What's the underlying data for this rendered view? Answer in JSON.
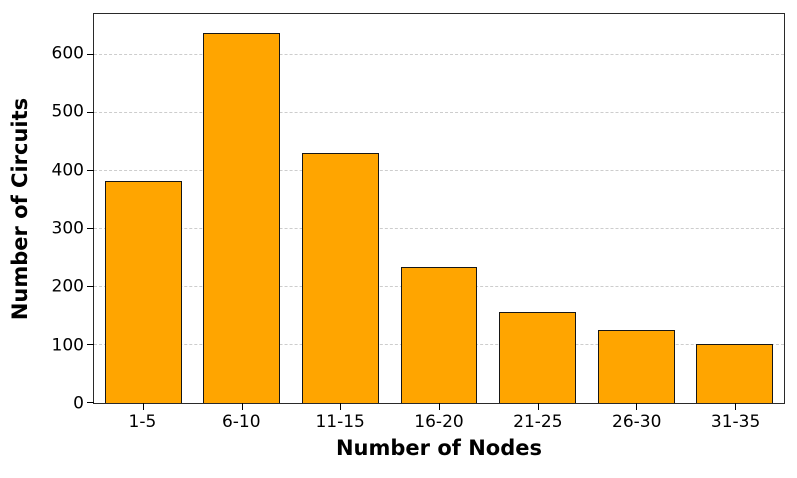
{
  "chart_data": {
    "type": "bar",
    "categories": [
      "1-5",
      "6-10",
      "11-15",
      "16-20",
      "21-25",
      "26-30",
      "31-35"
    ],
    "values": [
      383,
      638,
      431,
      234,
      156,
      126,
      101
    ],
    "title": "",
    "xlabel": "Number of Nodes",
    "ylabel": "Number of Circuits",
    "ylim": [
      0,
      670
    ],
    "yticks": [
      0,
      100,
      200,
      300,
      400,
      500,
      600
    ],
    "grid": "horizontal-dashed",
    "legend": "none",
    "bar_color": "#FFA500",
    "bar_edge_color": "#161616",
    "grid_color": "#cdcdcd",
    "axis_color": "#2a2a2a",
    "background_color": "#ffffff"
  }
}
